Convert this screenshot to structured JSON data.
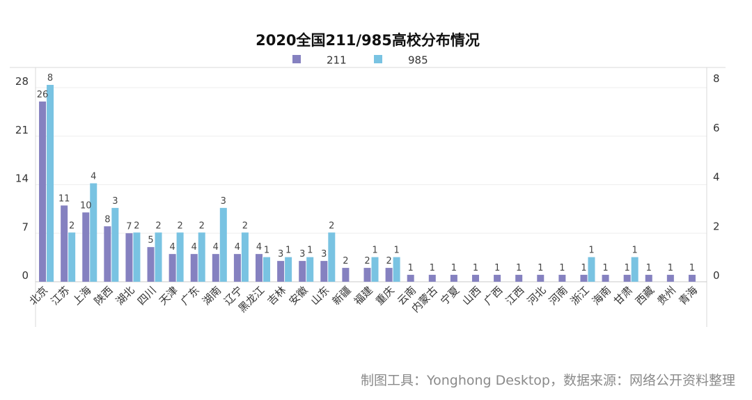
{
  "chart_data": {
    "type": "bar",
    "title": "2020全国211/985高校分布情况",
    "categories": [
      "北京",
      "江苏",
      "上海",
      "陕西",
      "湖北",
      "四川",
      "天津",
      "广东",
      "湖南",
      "辽宁",
      "黑龙江",
      "吉林",
      "安徽",
      "山东",
      "新疆",
      "福建",
      "重庆",
      "云南",
      "内蒙古",
      "宁夏",
      "山西",
      "广西",
      "江西",
      "河北",
      "河南",
      "浙江",
      "海南",
      "甘肃",
      "西藏",
      "贵州",
      "青海"
    ],
    "series": [
      {
        "name": "211",
        "axis": "left",
        "color": "#8581c0",
        "values": [
          26,
          11,
          10,
          8,
          7,
          5,
          4,
          4,
          4,
          4,
          4,
          3,
          3,
          3,
          2,
          2,
          2,
          1,
          1,
          1,
          1,
          1,
          1,
          1,
          1,
          1,
          1,
          1,
          1,
          1,
          1
        ]
      },
      {
        "name": "985",
        "axis": "right",
        "color": "#79c3e2",
        "values": [
          8,
          2,
          4,
          3,
          2,
          2,
          2,
          2,
          3,
          2,
          1,
          1,
          1,
          2,
          null,
          1,
          1,
          null,
          null,
          null,
          null,
          null,
          null,
          null,
          null,
          1,
          null,
          1,
          null,
          null,
          null
        ]
      }
    ],
    "left_axis": {
      "ticks": [
        0,
        7,
        14,
        21,
        28
      ],
      "range": [
        0,
        28
      ]
    },
    "right_axis": {
      "ticks": [
        0,
        2,
        4,
        6,
        8
      ],
      "range": [
        0,
        8
      ]
    },
    "legend_position": "top-center",
    "grid": true
  },
  "footer": "制图工具：Yonghong Desktop，数据来源：网络公开资料整理"
}
